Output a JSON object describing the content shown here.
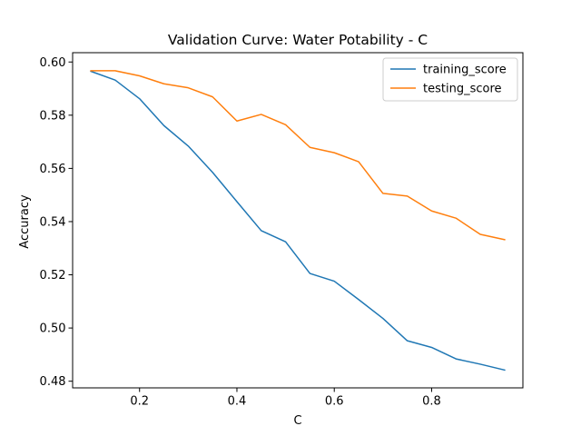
{
  "chart_data": {
    "type": "line",
    "title": "Validation Curve: Water Potability - C",
    "xlabel": "C",
    "ylabel": "Accuracy",
    "xlim": [
      0.0625,
      0.9875
    ],
    "ylim": [
      0.4775,
      0.6035
    ],
    "xticks": [
      0.2,
      0.4,
      0.6,
      0.8
    ],
    "xtick_labels": [
      "0.2",
      "0.4",
      "0.6",
      "0.8"
    ],
    "yticks": [
      0.48,
      0.5,
      0.52,
      0.54,
      0.56,
      0.58,
      0.6
    ],
    "ytick_labels": [
      "0.48",
      "0.50",
      "0.52",
      "0.54",
      "0.56",
      "0.58",
      "0.60"
    ],
    "grid": false,
    "legend_position": "top-right",
    "x": [
      0.1,
      0.15,
      0.2,
      0.25,
      0.3,
      0.35,
      0.4,
      0.45,
      0.5,
      0.55,
      0.6,
      0.65,
      0.7,
      0.75,
      0.8,
      0.85,
      0.9,
      0.95
    ],
    "series": [
      {
        "name": "training_score",
        "color": "#1f77b4",
        "values": [
          0.5965,
          0.5932,
          0.5862,
          0.5761,
          0.5684,
          0.5585,
          0.5475,
          0.5366,
          0.5324,
          0.5205,
          0.5176,
          0.5107,
          0.5036,
          0.4952,
          0.4927,
          0.4884,
          0.4864,
          0.4842
        ]
      },
      {
        "name": "testing_score",
        "color": "#ff7f0e",
        "values": [
          0.5967,
          0.5967,
          0.5948,
          0.5918,
          0.5903,
          0.5869,
          0.5778,
          0.5803,
          0.5764,
          0.5679,
          0.5659,
          0.5625,
          0.5506,
          0.5496,
          0.544,
          0.5413,
          0.5352,
          0.5332
        ]
      }
    ]
  }
}
